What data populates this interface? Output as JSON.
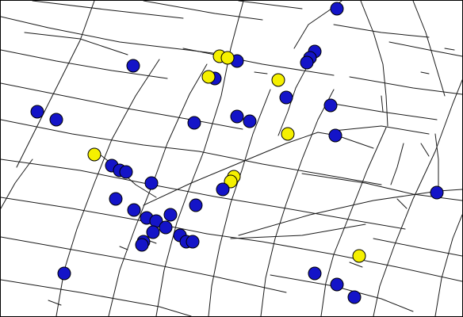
{
  "map": {
    "background_color": "#ffffff",
    "street_color": "#1a1a1a",
    "marker_categories": [
      {
        "id": "blue",
        "color": "#1414c8"
      },
      {
        "id": "yellow",
        "color": "#f5f000"
      }
    ]
  }
}
